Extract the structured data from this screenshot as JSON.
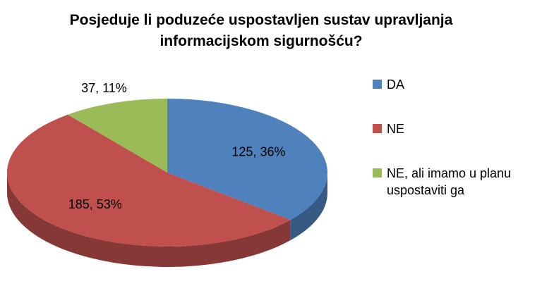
{
  "chart_data": {
    "type": "pie3d",
    "title": "Posjeduje li poduzeće uspostavljen sustav upravljanja informacijskom sigurnošću?",
    "categories": [
      "DA",
      "NE",
      "NE, ali imamo u planu uspostaviti ga"
    ],
    "values": [
      125,
      185,
      37
    ],
    "value_labels": [
      "125, 36%",
      "185, 53%",
      "37, 11%"
    ],
    "colors": [
      "#4f81bd",
      "#c0504d",
      "#9bbb59"
    ],
    "legend": "right"
  }
}
